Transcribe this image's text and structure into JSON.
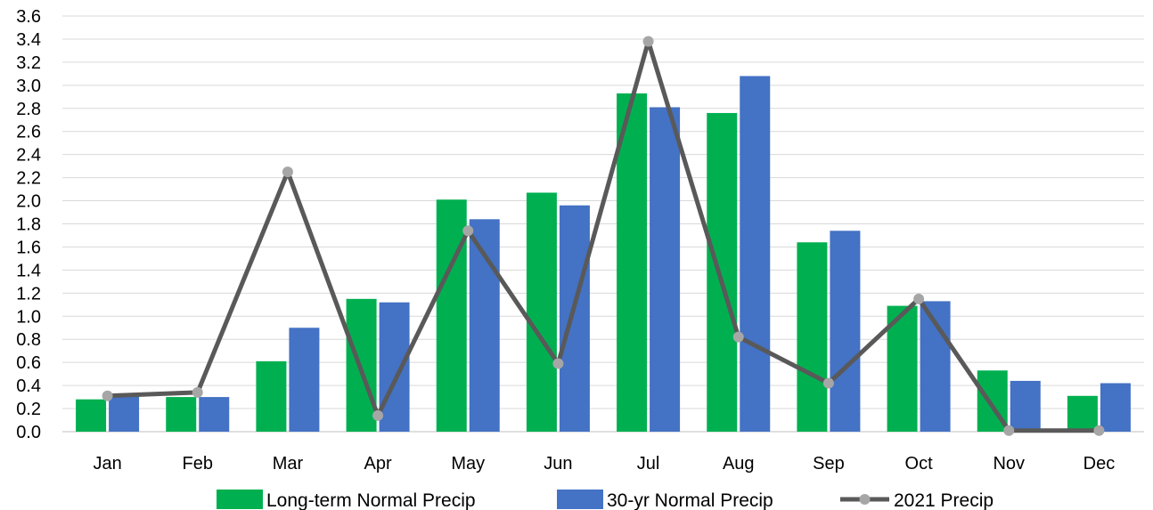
{
  "chart_data": {
    "type": "bar",
    "title": "",
    "xlabel": "",
    "ylabel": "",
    "ylim": [
      0,
      3.6
    ],
    "yticks": [
      "0.0",
      "0.2",
      "0.4",
      "0.6",
      "0.8",
      "1.0",
      "1.2",
      "1.4",
      "1.6",
      "1.8",
      "2.0",
      "2.2",
      "2.4",
      "2.6",
      "2.8",
      "3.0",
      "3.2",
      "3.4",
      "3.6"
    ],
    "grid": true,
    "legend_position": "bottom",
    "categories": [
      "Jan",
      "Feb",
      "Mar",
      "Apr",
      "May",
      "Jun",
      "Jul",
      "Aug",
      "Sep",
      "Oct",
      "Nov",
      "Dec"
    ],
    "series": [
      {
        "name": "Long-term Normal Precip",
        "kind": "bar",
        "color": "#00b050",
        "values": [
          0.28,
          0.3,
          0.61,
          1.15,
          2.01,
          2.07,
          2.93,
          2.76,
          1.64,
          1.09,
          0.53,
          0.31
        ]
      },
      {
        "name": "30-yr Normal Precip",
        "kind": "bar",
        "color": "#4472c4",
        "values": [
          0.31,
          0.3,
          0.9,
          1.12,
          1.84,
          1.96,
          2.81,
          3.08,
          1.74,
          1.13,
          0.44,
          0.42
        ]
      },
      {
        "name": "2021 Precip",
        "kind": "line",
        "color": "#595959",
        "marker_color": "#a6a6a6",
        "values": [
          0.31,
          0.34,
          2.25,
          0.14,
          1.74,
          0.59,
          3.38,
          0.82,
          0.42,
          1.15,
          0.01,
          0.01
        ]
      }
    ]
  }
}
